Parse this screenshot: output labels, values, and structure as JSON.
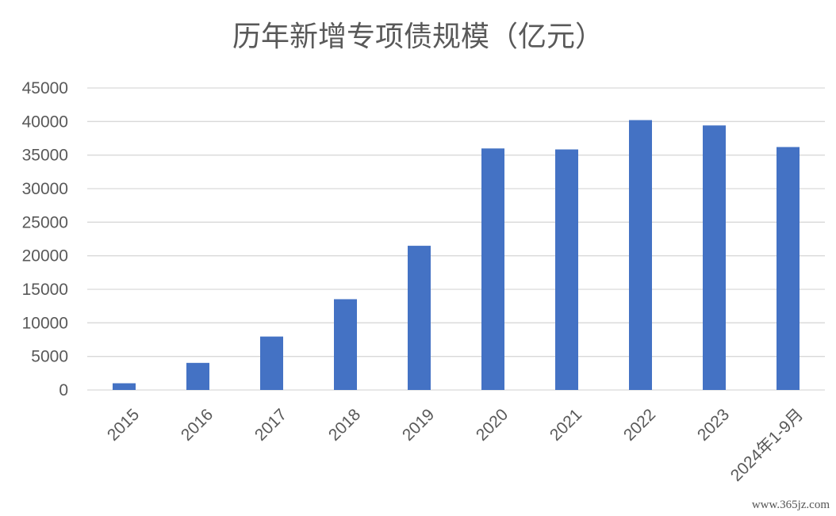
{
  "chart_data": {
    "type": "bar",
    "title": "历年新增专项债规模（亿元）",
    "xlabel": "",
    "ylabel": "",
    "categories": [
      "2015",
      "2016",
      "2017",
      "2018",
      "2019",
      "2020",
      "2021",
      "2022",
      "2023",
      "2024年1-9月"
    ],
    "values": [
      1000,
      4037,
      7961,
      13527,
      21487,
      35990,
      35844,
      40213,
      39418,
      36200
    ],
    "ylim": [
      0,
      45000
    ],
    "yticks": [
      "0",
      "5000",
      "10000",
      "15000",
      "20000",
      "25000",
      "30000",
      "35000",
      "40000",
      "45000"
    ],
    "grid": true,
    "legend": "none",
    "bar_color": "#4472c4"
  },
  "watermark": "www.365jz.com"
}
